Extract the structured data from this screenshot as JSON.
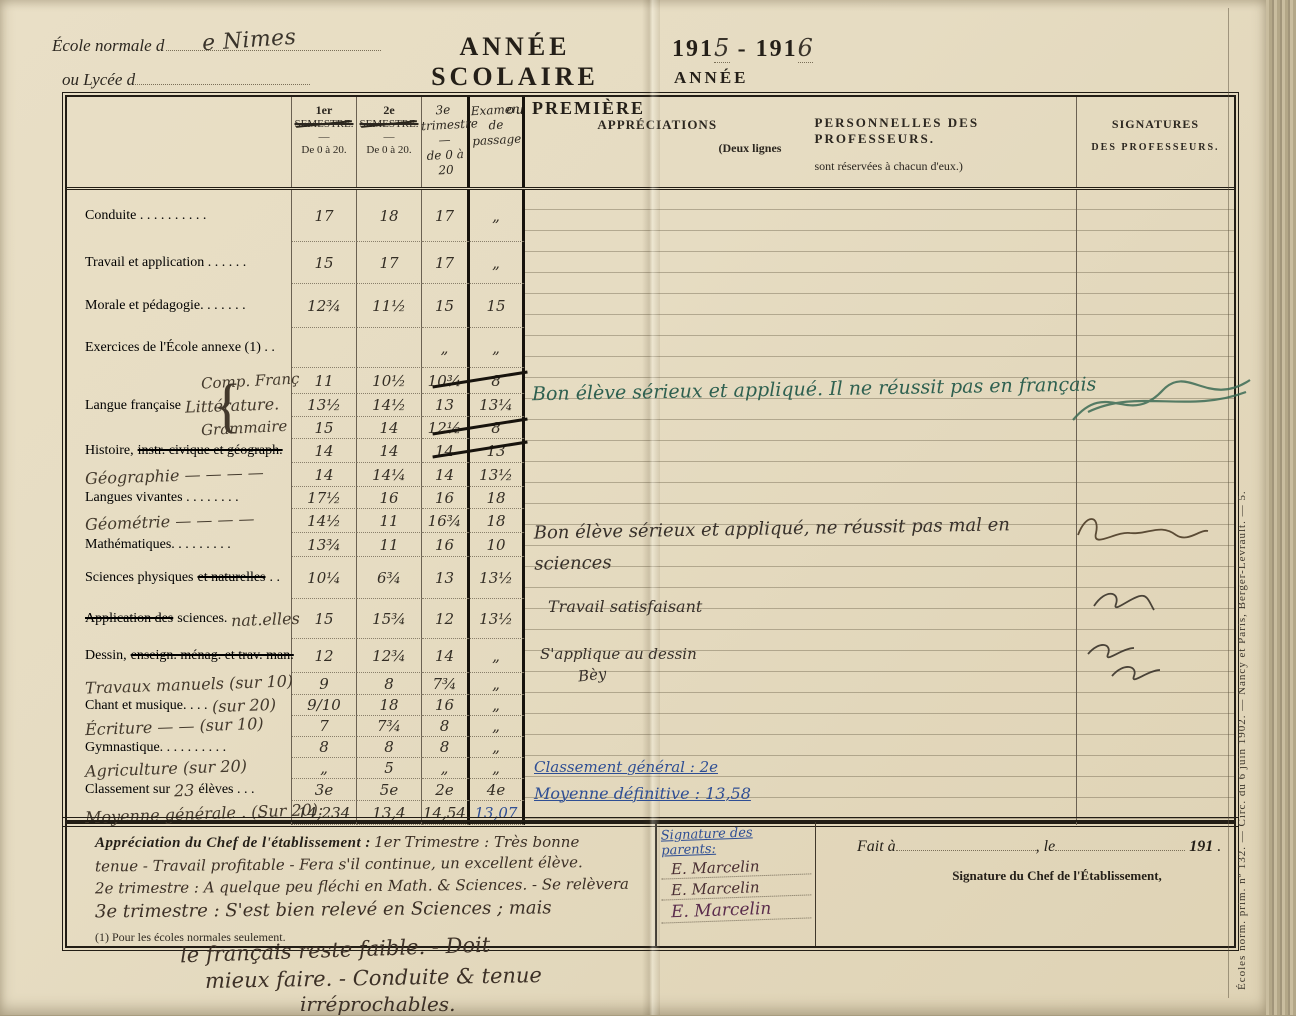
{
  "header": {
    "school_label": "École normale d",
    "school_value": "e  Nimes",
    "lycee_label": "ou Lycée d",
    "title_line1": "ANNÉE SCOLAIRE",
    "title_line2_ou": "ou",
    "title_line2": "PREMIÈRE",
    "year_prefix1": "191",
    "year_hw1": "5",
    "year_sep": "-",
    "year_prefix2": "191",
    "year_hw2": "6",
    "annee": "ANNÉE"
  },
  "table": {
    "col_sem1": {
      "num": "1er",
      "name": "SEMESTRE.",
      "dash": "—",
      "range": "De 0 à 20."
    },
    "col_sem2": {
      "num": "2e",
      "name": "SEMESTRE.",
      "dash": "—",
      "range": "De 0 à 20."
    },
    "col_trim3": "3e\ntrimestre\n—\nde 0 à 20",
    "col_exam": "Examen\nde\npassage",
    "col_appr": {
      "line1": "APPRÉCIATIONS",
      "line2": "(Deux lignes"
    },
    "col_pers": {
      "line1": "PERSONNELLES DES PROFESSEURS.",
      "line2": "sont réservées à chacun d'eux.)"
    },
    "col_sig": {
      "line1": "SIGNATURES",
      "line2": "DES PROFESSEURS."
    },
    "rows": [
      {
        "parts": [
          [
            "p",
            "Conduite . . . . . . . . . ."
          ]
        ],
        "g": [
          "17",
          "18",
          "17",
          "„"
        ]
      },
      {
        "parts": [
          [
            "p",
            "Travail et application . . . . . ."
          ]
        ],
        "g": [
          "15",
          "17",
          "17",
          "„"
        ]
      },
      {
        "parts": [
          [
            "p",
            "Morale et pédagogie. . . . . . ."
          ]
        ],
        "g": [
          "12¾",
          "11½",
          "15",
          "15"
        ]
      },
      {
        "parts": [
          [
            "p",
            "Exercices de l'École annexe (1) . ."
          ]
        ],
        "g": [
          "",
          "",
          "„",
          "„"
        ]
      },
      {
        "parts": [
          [
            "H",
            "Comp. Franç"
          ]
        ],
        "g": [
          "11",
          "10½",
          "10¾",
          "8"
        ],
        "xs": true
      },
      {
        "parts": [
          [
            "p",
            "Langue française"
          ],
          [
            "b",
            "{"
          ],
          [
            "h",
            "Littérature."
          ]
        ],
        "g": [
          "13½",
          "14½",
          "13",
          "13¼"
        ]
      },
      {
        "parts": [
          [
            "H",
            "Grammaire"
          ]
        ],
        "g": [
          "15",
          "14",
          "12½",
          "8"
        ],
        "xs": true
      },
      {
        "parts": [
          [
            "p",
            "Histoire,"
          ],
          [
            "s",
            "instr. civique et géograph."
          ]
        ],
        "g": [
          "14",
          "14",
          "14",
          "13"
        ],
        "xs": true
      },
      {
        "parts": [
          [
            "h",
            "Géographie — — — —"
          ]
        ],
        "g": [
          "14",
          "14¼",
          "14",
          "13½"
        ]
      },
      {
        "parts": [
          [
            "p",
            "Langues vivantes . . . . . . . ."
          ]
        ],
        "g": [
          "17½",
          "16",
          "16",
          "18"
        ]
      },
      {
        "parts": [
          [
            "h",
            "Géométrie — — — —"
          ]
        ],
        "g": [
          "14½",
          "11",
          "16¾",
          "18"
        ]
      },
      {
        "parts": [
          [
            "p",
            "Mathématiques. . . . . . . . ."
          ]
        ],
        "g": [
          "13¾",
          "11",
          "16",
          "10"
        ]
      },
      {
        "parts": [
          [
            "p",
            "Sciences physiques"
          ],
          [
            "s",
            "et naturelles"
          ],
          [
            "p",
            ". ."
          ]
        ],
        "g": [
          "10¼",
          "6¾",
          "13",
          "13½"
        ]
      },
      {
        "parts": [
          [
            "s",
            "Application des"
          ],
          [
            "p",
            "sciences."
          ],
          [
            "h",
            "nat.elles"
          ]
        ],
        "g": [
          "15",
          "15¾",
          "12",
          "13½"
        ]
      },
      {
        "parts": [
          [
            "p",
            "Dessin,"
          ],
          [
            "s",
            "enseign. ménag. et trav. man."
          ]
        ],
        "g": [
          "12",
          "12¾",
          "14",
          "„"
        ]
      },
      {
        "parts": [
          [
            "h",
            "Travaux manuels (sur 10)"
          ]
        ],
        "g": [
          "9",
          "8",
          "7¾",
          "„"
        ]
      },
      {
        "parts": [
          [
            "p",
            "Chant et musique. . . ."
          ],
          [
            "h",
            "(sur 20)"
          ]
        ],
        "g": [
          "9/10",
          "18",
          "16",
          "„"
        ]
      },
      {
        "parts": [
          [
            "h",
            "Écriture — — (sur 10)"
          ]
        ],
        "g": [
          "7",
          "7¾",
          "8",
          "„"
        ]
      },
      {
        "parts": [
          [
            "p",
            "Gymnastique. . . . . . . . . ."
          ]
        ],
        "g": [
          "8",
          "8",
          "8",
          "„"
        ]
      },
      {
        "parts": [
          [
            "h",
            "Agriculture (sur 20)"
          ]
        ],
        "g": [
          "„",
          "5",
          "„",
          "„"
        ]
      },
      {
        "parts": [
          [
            "p",
            "Classement sur"
          ],
          [
            "h",
            "23"
          ],
          [
            "p",
            "élèves . . ."
          ]
        ],
        "g": [
          "3e",
          "5e",
          "2e",
          "4e"
        ]
      },
      {
        "parts": [
          [
            "h",
            "Moyenne générale . (Sur 20):"
          ]
        ],
        "g": [
          "14,234",
          "13,4",
          "14,54",
          "13,07"
        ],
        "gc": [
          "",
          "",
          "",
          "blue"
        ]
      }
    ]
  },
  "notes": {
    "francais": "Bon élève sérieux et appliqué. Il ne réussit pas en français",
    "sciences": "Bon élève sérieux et appliqué, ne réussit pas mal en sciences",
    "travail": "Travail satisfaisant",
    "dessin": "S'applique au dessin",
    "dessin_sig": "Bèy",
    "classement_general": "Classement général : 2e",
    "moyenne_definitive": "Moyenne définitive : 13,58"
  },
  "bottom": {
    "chef_label": "Appréciation du Chef de l'établissement :",
    "chef_line1": "1er Trimestre : Très bonne",
    "chef_line2": "tenue - Travail profitable - Fera s'il continue, un excellent élève.",
    "chef_line3": "2e trimestre : A quelque peu fléchi en Math. & Sciences. - Se relèvera",
    "chef_line4": "3e trimestre : S'est bien relevé en Sciences ; mais",
    "chef_line5": "le français reste faible. - Doit",
    "chef_line6": "mieux faire. - Conduite & tenue",
    "chef_line7": "irréprochables.",
    "footnote": "(1) Pour les écoles normales seulement.",
    "parents_label": "Signature des parents:",
    "parent_sig1": "E. Marcelin",
    "parent_sig2": "E. Marcelin",
    "parent_sig3": "E. Marcelin",
    "fait_a": "Fait à",
    "le": ", le",
    "year": "191",
    "dot": ".",
    "sig_chef": "Signature du Chef de l'Établissement,"
  },
  "margin_text": "Écoles norm. prim. nº 132. — Circ. du 6 juin 1902. — Nancy et Paris, Berger-Levrault. — 5.",
  "ink_colors": {
    "ink": "#3a342b",
    "green": "#2e6050",
    "blue": "#2e4e94",
    "purple": "#5a2c4c"
  }
}
